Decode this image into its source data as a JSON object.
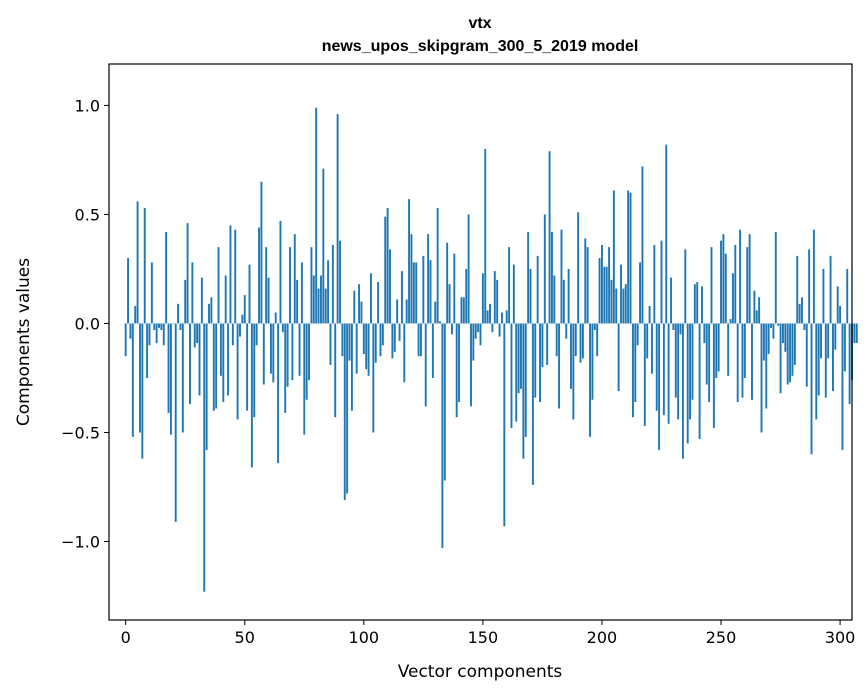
{
  "chart_data": {
    "type": "bar",
    "title": "vtx",
    "subtitle": "news_upos_skipgram_300_5_2019 model",
    "xlabel": "Vector components",
    "ylabel": "Components values",
    "xlim": [
      -7,
      305
    ],
    "ylim": [
      -1.36,
      1.19
    ],
    "bar_color": "#1f77b4",
    "x_ticks": [
      0,
      50,
      100,
      150,
      200,
      250,
      300
    ],
    "x_tick_labels": [
      "0",
      "50",
      "100",
      "150",
      "200",
      "250",
      "300"
    ],
    "y_ticks": [
      -1.0,
      -0.5,
      0.0,
      0.5,
      1.0
    ],
    "y_tick_labels": [
      "−1.0",
      "−0.5",
      "0.0",
      "0.5",
      "1.0"
    ],
    "values": [
      -0.15,
      0.3,
      -0.07,
      -0.52,
      0.08,
      0.56,
      -0.5,
      -0.62,
      0.53,
      -0.25,
      -0.1,
      0.28,
      -0.03,
      -0.09,
      -0.02,
      -0.03,
      -0.1,
      0.42,
      -0.41,
      -0.51,
      0.0,
      -0.91,
      0.09,
      -0.03,
      -0.5,
      0.2,
      0.46,
      -0.37,
      0.28,
      -0.11,
      -0.09,
      -0.33,
      0.21,
      -1.23,
      -0.58,
      0.09,
      0.12,
      -0.4,
      -0.39,
      0.35,
      -0.24,
      -0.36,
      0.22,
      -0.33,
      0.45,
      -0.1,
      0.43,
      -0.44,
      -0.06,
      0.04,
      0.13,
      -0.4,
      0.27,
      -0.66,
      -0.43,
      -0.1,
      0.44,
      0.65,
      -0.28,
      0.35,
      0.21,
      -0.23,
      -0.27,
      0.05,
      -0.64,
      0.47,
      -0.04,
      -0.41,
      -0.29,
      0.35,
      -0.26,
      0.41,
      0.2,
      -0.24,
      0.28,
      -0.51,
      -0.35,
      -0.26,
      0.35,
      0.22,
      0.99,
      0.16,
      0.22,
      0.71,
      0.16,
      0.29,
      -0.19,
      0.36,
      -0.43,
      0.96,
      0.38,
      -0.15,
      -0.81,
      -0.78,
      -0.17,
      -0.4,
      0.15,
      -0.23,
      0.18,
      0.1,
      -0.14,
      -0.21,
      -0.24,
      0.23,
      -0.5,
      -0.18,
      0.19,
      -0.15,
      -0.1,
      0.49,
      0.53,
      0.34,
      -0.16,
      -0.13,
      0.11,
      -0.08,
      0.24,
      -0.27,
      0.11,
      0.57,
      0.41,
      0.28,
      0.28,
      -0.15,
      -0.15,
      0.31,
      -0.38,
      0.41,
      0.29,
      -0.25,
      0.1,
      0.53,
      0.01,
      -1.03,
      -0.72,
      0.37,
      0.18,
      -0.05,
      0.32,
      -0.43,
      -0.36,
      0.12,
      0.12,
      0.25,
      0.5,
      -0.38,
      -0.17,
      -0.07,
      -0.04,
      -0.1,
      0.23,
      0.8,
      0.06,
      0.09,
      -0.04,
      0.24,
      0.2,
      -0.06,
      0.05,
      -0.93,
      0.06,
      0.35,
      -0.48,
      0.27,
      -0.45,
      -0.32,
      -0.3,
      -0.62,
      -0.52,
      0.42,
      0.25,
      -0.74,
      -0.34,
      0.31,
      -0.36,
      -0.2,
      0.5,
      -0.19,
      0.79,
      0.42,
      0.22,
      -0.15,
      -0.39,
      0.43,
      0.2,
      -0.07,
      0.25,
      -0.3,
      -0.44,
      -0.15,
      0.51,
      -0.18,
      -0.16,
      0.39,
      0.35,
      -0.52,
      -0.35,
      -0.03,
      -0.15,
      0.3,
      0.36,
      0.26,
      0.26,
      0.35,
      0.2,
      0.61,
      0.16,
      -0.31,
      0.27,
      0.16,
      0.18,
      0.61,
      0.6,
      -0.43,
      -0.36,
      -0.1,
      0.28,
      0.72,
      -0.47,
      -0.16,
      0.08,
      -0.23,
      0.36,
      -0.4,
      -0.58,
      0.38,
      -0.42,
      0.82,
      -0.46,
      0.21,
      -0.03,
      -0.34,
      -0.44,
      -0.05,
      -0.62,
      0.34,
      -0.55,
      -0.44,
      -0.35,
      0.18,
      0.19,
      -0.53,
      0.17,
      -0.09,
      -0.28,
      -0.36,
      0.35,
      -0.48,
      -0.25,
      -0.22,
      0.38,
      0.41,
      0.32,
      -0.24,
      0.02,
      0.23,
      0.36,
      -0.36,
      0.43,
      -0.34,
      -0.25,
      0.35,
      0.41,
      -0.35,
      0.15,
      0.06,
      0.12,
      -0.5,
      -0.17,
      -0.39,
      -0.14,
      -0.02,
      -0.07,
      0.42,
      -0.01,
      -0.32,
      -0.09,
      -0.13,
      -0.28,
      -0.27,
      -0.24,
      -0.19,
      0.31,
      0.09,
      0.12,
      -0.03,
      -0.29,
      0.34,
      -0.6,
      0.43,
      -0.44,
      -0.33,
      -0.16,
      0.25,
      -0.34,
      -0.16,
      0.31,
      -0.31,
      -0.12,
      0.17,
      0.08,
      -0.58,
      -0.22,
      0.25,
      -0.37,
      -0.26,
      -0.09,
      -0.09
    ]
  }
}
